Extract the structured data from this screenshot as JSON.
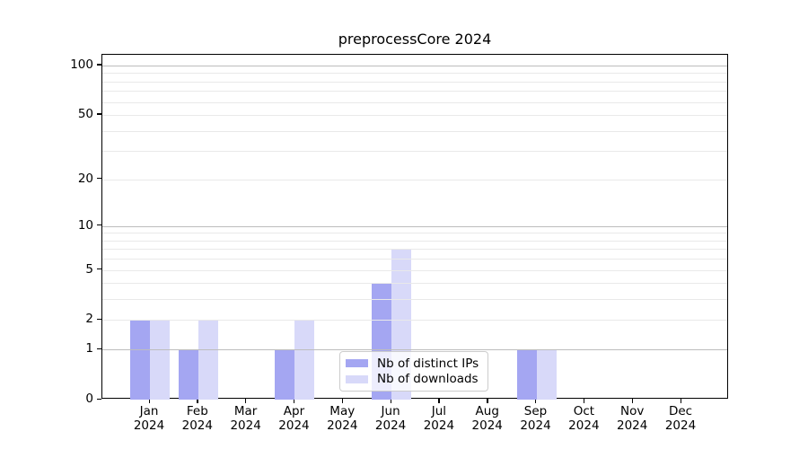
{
  "chart_data": {
    "type": "bar",
    "title": "preprocessCore 2024",
    "categories": [
      {
        "month": "Jan",
        "year": "2024"
      },
      {
        "month": "Feb",
        "year": "2024"
      },
      {
        "month": "Mar",
        "year": "2024"
      },
      {
        "month": "Apr",
        "year": "2024"
      },
      {
        "month": "May",
        "year": "2024"
      },
      {
        "month": "Jun",
        "year": "2024"
      },
      {
        "month": "Jul",
        "year": "2024"
      },
      {
        "month": "Aug",
        "year": "2024"
      },
      {
        "month": "Sep",
        "year": "2024"
      },
      {
        "month": "Oct",
        "year": "2024"
      },
      {
        "month": "Nov",
        "year": "2024"
      },
      {
        "month": "Dec",
        "year": "2024"
      }
    ],
    "series": [
      {
        "name": "Nb of distinct IPs",
        "color": "#a4a6f2",
        "values": [
          2,
          1,
          0,
          1,
          0,
          4,
          0,
          0,
          1,
          0,
          0,
          0
        ]
      },
      {
        "name": "Nb of downloads",
        "color": "#d8d9f9",
        "values": [
          2,
          2,
          0,
          2,
          0,
          7,
          0,
          0,
          1,
          0,
          0,
          0
        ]
      }
    ],
    "yscale": "log1p",
    "ylim": [
      0,
      116
    ],
    "yticks": [
      100,
      50,
      20,
      10,
      5,
      2,
      1,
      0
    ],
    "grid": {
      "major_values": [
        1,
        10,
        100
      ],
      "minor_values": [
        2,
        3,
        4,
        5,
        6,
        7,
        8,
        9,
        20,
        30,
        40,
        50,
        60,
        70,
        80,
        90
      ],
      "major_color": "#bdbdbd",
      "minor_color": "#e9e9e9"
    },
    "legend": {
      "frame_color": "#cccccc",
      "background": "rgba(255,255,255,0.8)"
    },
    "axis_color": "#000000",
    "text_color": "#000000"
  }
}
